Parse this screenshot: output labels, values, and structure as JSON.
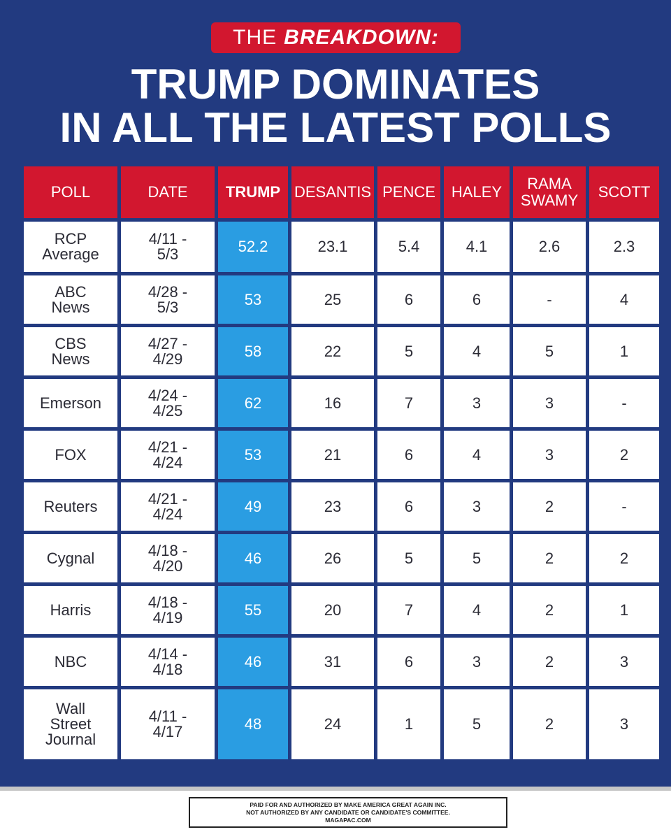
{
  "badge": {
    "prefix": "THE",
    "emphasis": "BREAKDOWN:"
  },
  "headline": {
    "line1": "TRUMP DOMINATES",
    "line2": "IN ALL THE LATEST POLLS"
  },
  "table": {
    "headers": [
      "POLL",
      "DATE",
      "TRUMP",
      "DESANTIS",
      "PENCE",
      "HALEY",
      "RAMA\nSWAMY",
      "SCOTT"
    ],
    "rows": [
      [
        "RCP\nAverage",
        "4/11 -\n5/3",
        "52.2",
        "23.1",
        "5.4",
        "4.1",
        "2.6",
        "2.3"
      ],
      [
        "ABC\nNews",
        "4/28 -\n5/3",
        "53",
        "25",
        "6",
        "6",
        "-",
        "4"
      ],
      [
        "CBS\nNews",
        "4/27 -\n4/29",
        "58",
        "22",
        "5",
        "4",
        "5",
        "1"
      ],
      [
        "Emerson",
        "4/24 -\n4/25",
        "62",
        "16",
        "7",
        "3",
        "3",
        "-"
      ],
      [
        "FOX",
        "4/21 -\n4/24",
        "53",
        "21",
        "6",
        "4",
        "3",
        "2"
      ],
      [
        "Reuters",
        "4/21 -\n4/24",
        "49",
        "23",
        "6",
        "3",
        "2",
        "-"
      ],
      [
        "Cygnal",
        "4/18 -\n4/20",
        "46",
        "26",
        "5",
        "5",
        "2",
        "2"
      ],
      [
        "Harris",
        "4/18 -\n4/19",
        "55",
        "20",
        "7",
        "4",
        "2",
        "1"
      ],
      [
        "NBC",
        "4/14 -\n4/18",
        "46",
        "31",
        "6",
        "3",
        "2",
        "3"
      ],
      [
        "Wall\nStreet\nJournal",
        "4/11 -\n4/17",
        "48",
        "24",
        "1",
        "5",
        "2",
        "3"
      ]
    ]
  },
  "disclaimer": {
    "line1": "PAID FOR AND AUTHORIZED BY MAKE AMERICA GREAT AGAIN INC.",
    "line2": "NOT AUTHORIZED BY ANY CANDIDATE OR CANDIDATE'S COMMITTEE.",
    "line3": "MAGAPAC.COM"
  },
  "colors": {
    "background": "#223a80",
    "header_red": "#d2172f",
    "highlight_blue": "#2a9de2"
  }
}
